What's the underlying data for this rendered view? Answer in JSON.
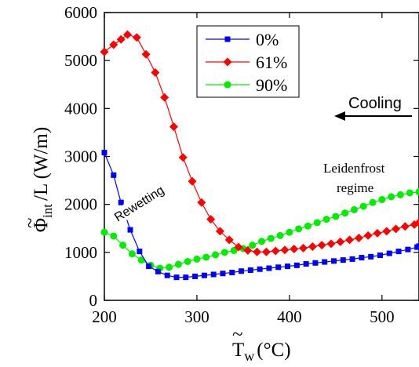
{
  "chart_data": {
    "type": "line",
    "xlabel": {
      "symbol": "T",
      "subscript": "w",
      "unit": "(°C)"
    },
    "ylabel": {
      "symbol": "Φ",
      "subscript": "int",
      "rest": "/L (W/m)"
    },
    "xlim": [
      200,
      540
    ],
    "ylim": [
      0,
      6000
    ],
    "xticks": [
      200,
      300,
      400,
      500
    ],
    "yticks": [
      0,
      1000,
      2000,
      3000,
      4000,
      5000,
      6000
    ],
    "grid": false,
    "legend": {
      "position": "top-center",
      "entries": [
        "0%",
        "61%",
        "90%"
      ]
    },
    "annotations": {
      "cooling": "Cooling",
      "leidenfrost_line1": "Leidenfrost",
      "leidenfrost_line2": "regime",
      "rewetting": "Rewetting"
    },
    "series": [
      {
        "name": "0%",
        "color": "#0000ff",
        "marker": "square",
        "points": [
          [
            200,
            3080
          ],
          [
            210,
            2610
          ],
          [
            218,
            2040
          ],
          [
            228,
            1470
          ],
          [
            238,
            1020
          ],
          [
            248,
            710
          ],
          [
            258,
            600
          ],
          [
            268,
            520
          ],
          [
            278,
            480
          ],
          [
            288,
            480
          ],
          [
            298,
            500
          ],
          [
            308,
            520
          ],
          [
            318,
            540
          ],
          [
            328,
            560
          ],
          [
            338,
            580
          ],
          [
            348,
            610
          ],
          [
            358,
            630
          ],
          [
            368,
            650
          ],
          [
            378,
            670
          ],
          [
            388,
            690
          ],
          [
            398,
            710
          ],
          [
            408,
            730
          ],
          [
            418,
            760
          ],
          [
            428,
            780
          ],
          [
            438,
            800
          ],
          [
            448,
            820
          ],
          [
            458,
            840
          ],
          [
            468,
            860
          ],
          [
            478,
            890
          ],
          [
            488,
            910
          ],
          [
            498,
            940
          ],
          [
            508,
            980
          ],
          [
            518,
            1020
          ],
          [
            528,
            1060
          ],
          [
            538,
            1110
          ],
          [
            540,
            1130
          ]
        ]
      },
      {
        "name": "61%",
        "color": "#ff0000",
        "marker": "diamond",
        "points": [
          [
            200,
            5180
          ],
          [
            210,
            5330
          ],
          [
            218,
            5440
          ],
          [
            225,
            5540
          ],
          [
            235,
            5480
          ],
          [
            245,
            5130
          ],
          [
            255,
            4750
          ],
          [
            265,
            4230
          ],
          [
            275,
            3620
          ],
          [
            285,
            2980
          ],
          [
            295,
            2480
          ],
          [
            305,
            2040
          ],
          [
            315,
            1690
          ],
          [
            325,
            1440
          ],
          [
            335,
            1260
          ],
          [
            345,
            1110
          ],
          [
            355,
            1040
          ],
          [
            365,
            1010
          ],
          [
            375,
            1010
          ],
          [
            385,
            1030
          ],
          [
            395,
            1050
          ],
          [
            405,
            1070
          ],
          [
            415,
            1090
          ],
          [
            425,
            1120
          ],
          [
            435,
            1150
          ],
          [
            445,
            1180
          ],
          [
            455,
            1220
          ],
          [
            465,
            1260
          ],
          [
            475,
            1300
          ],
          [
            485,
            1350
          ],
          [
            495,
            1400
          ],
          [
            505,
            1440
          ],
          [
            515,
            1490
          ],
          [
            525,
            1540
          ],
          [
            535,
            1580
          ],
          [
            540,
            1620
          ]
        ]
      },
      {
        "name": "90%",
        "color": "#00ee00",
        "marker": "circle",
        "points": [
          [
            200,
            1420
          ],
          [
            210,
            1340
          ],
          [
            220,
            1150
          ],
          [
            230,
            970
          ],
          [
            240,
            840
          ],
          [
            250,
            730
          ],
          [
            260,
            670
          ],
          [
            270,
            690
          ],
          [
            280,
            750
          ],
          [
            290,
            810
          ],
          [
            300,
            860
          ],
          [
            310,
            900
          ],
          [
            320,
            950
          ],
          [
            330,
            1000
          ],
          [
            340,
            1040
          ],
          [
            350,
            1080
          ],
          [
            360,
            1150
          ],
          [
            370,
            1230
          ],
          [
            380,
            1290
          ],
          [
            390,
            1350
          ],
          [
            400,
            1420
          ],
          [
            410,
            1490
          ],
          [
            420,
            1550
          ],
          [
            430,
            1620
          ],
          [
            440,
            1690
          ],
          [
            450,
            1750
          ],
          [
            460,
            1820
          ],
          [
            470,
            1890
          ],
          [
            480,
            1960
          ],
          [
            490,
            2040
          ],
          [
            500,
            2100
          ],
          [
            510,
            2160
          ],
          [
            520,
            2200
          ],
          [
            530,
            2240
          ],
          [
            540,
            2260
          ]
        ]
      }
    ]
  }
}
